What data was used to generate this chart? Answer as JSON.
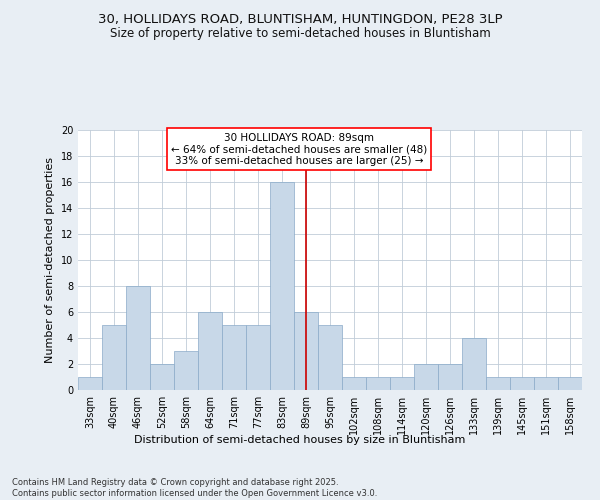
{
  "title_line1": "30, HOLLIDAYS ROAD, BLUNTISHAM, HUNTINGDON, PE28 3LP",
  "title_line2": "Size of property relative to semi-detached houses in Bluntisham",
  "xlabel": "Distribution of semi-detached houses by size in Bluntisham",
  "ylabel": "Number of semi-detached properties",
  "categories": [
    "33sqm",
    "40sqm",
    "46sqm",
    "52sqm",
    "58sqm",
    "64sqm",
    "71sqm",
    "77sqm",
    "83sqm",
    "89sqm",
    "95sqm",
    "102sqm",
    "108sqm",
    "114sqm",
    "120sqm",
    "126sqm",
    "133sqm",
    "139sqm",
    "145sqm",
    "151sqm",
    "158sqm"
  ],
  "values": [
    1,
    5,
    8,
    2,
    3,
    6,
    5,
    5,
    16,
    6,
    5,
    1,
    1,
    1,
    2,
    2,
    4,
    1,
    1,
    1,
    1
  ],
  "bar_color": "#c8d8e8",
  "bar_edge_color": "#8aaac8",
  "highlight_index": 9,
  "highlight_color": "#cc0000",
  "annotation_title": "30 HOLLIDAYS ROAD: 89sqm",
  "annotation_line1": "← 64% of semi-detached houses are smaller (48)",
  "annotation_line2": "33% of semi-detached houses are larger (25) →",
  "ylim": [
    0,
    20
  ],
  "yticks": [
    0,
    2,
    4,
    6,
    8,
    10,
    12,
    14,
    16,
    18,
    20
  ],
  "footnote": "Contains HM Land Registry data © Crown copyright and database right 2025.\nContains public sector information licensed under the Open Government Licence v3.0.",
  "bg_color": "#e8eef4",
  "plot_bg_color": "#ffffff",
  "grid_color": "#c0ccd8",
  "title_fontsize": 9.5,
  "subtitle_fontsize": 8.5,
  "annotation_fontsize": 7.5,
  "axis_label_fontsize": 8,
  "tick_fontsize": 7,
  "footnote_fontsize": 6
}
